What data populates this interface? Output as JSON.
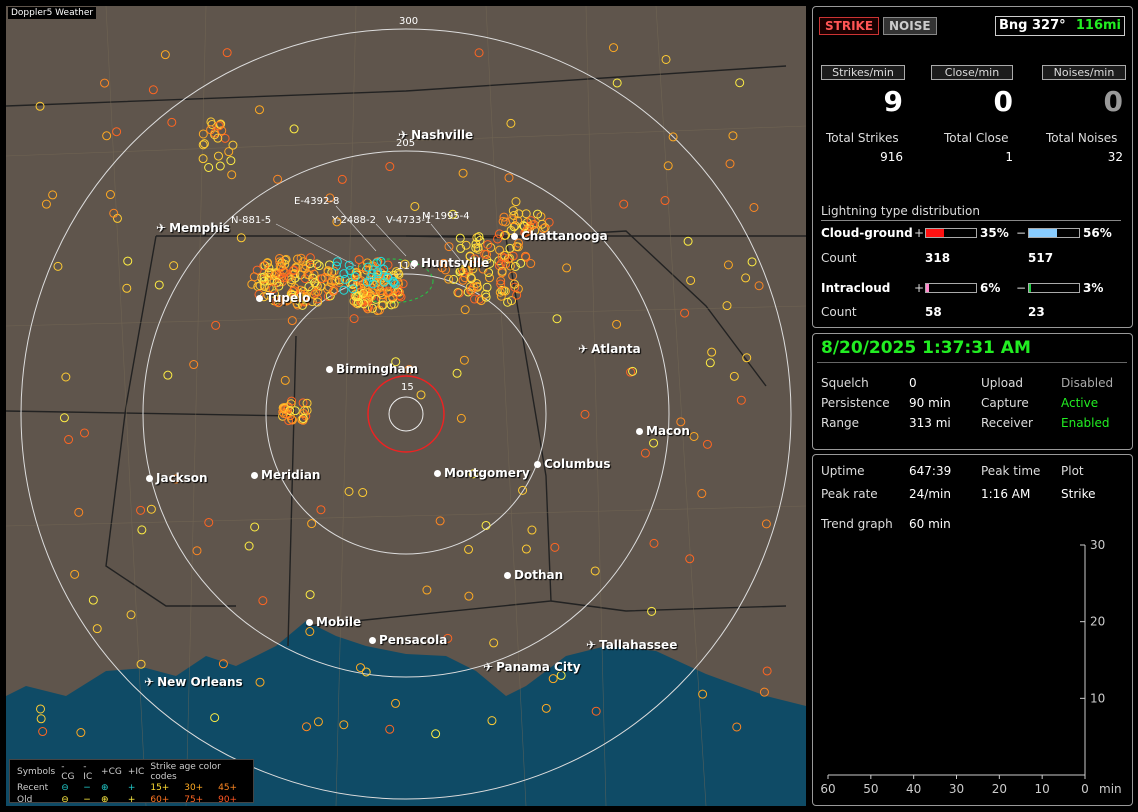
{
  "map": {
    "title": "Doppler5 Weather",
    "ring_labels": [
      "300",
      "205",
      "110",
      "15"
    ],
    "cities": [
      {
        "name": "Nashville",
        "type": "plane"
      },
      {
        "name": "Memphis",
        "type": "plane"
      },
      {
        "name": "Chattanooga",
        "type": "dot"
      },
      {
        "name": "Huntsville",
        "type": "dot"
      },
      {
        "name": "Tupelo",
        "type": "dot"
      },
      {
        "name": "Atlanta",
        "type": "plane"
      },
      {
        "name": "Birmingham",
        "type": "dot"
      },
      {
        "name": "Macon",
        "type": "dot"
      },
      {
        "name": "Jackson",
        "type": "dot"
      },
      {
        "name": "Meridian",
        "type": "dot"
      },
      {
        "name": "Montgomery",
        "type": "dot"
      },
      {
        "name": "Columbus",
        "type": "dot"
      },
      {
        "name": "Dothan",
        "type": "dot"
      },
      {
        "name": "Mobile",
        "type": "dot"
      },
      {
        "name": "Pensacola",
        "type": "dot"
      },
      {
        "name": "Tallahassee",
        "type": "plane"
      },
      {
        "name": "Panama City",
        "type": "plane"
      },
      {
        "name": "New Orleans",
        "type": "plane"
      }
    ],
    "sensor_labels": [
      "E-4392-8",
      "N-881-5",
      "Y-2488-2",
      "V-4733-1",
      "M-1995-4"
    ],
    "legend": {
      "header": [
        "Symbols",
        "-CG",
        "-IC",
        "+CG",
        "+IC",
        "Strike age color codes"
      ],
      "recent": {
        "label": "Recent",
        "ages": [
          "15+",
          "30+",
          "45+"
        ]
      },
      "old": {
        "label": "Old",
        "ages": [
          "60+",
          "75+",
          "90+"
        ]
      }
    }
  },
  "status": {
    "strike_btn": "STRIKE",
    "noise_btn": "NOISE",
    "bearing": "Bng 327°",
    "distance": "116mi",
    "headers": [
      "Strikes/min",
      "Close/min",
      "Noises/min"
    ],
    "rates": [
      "9",
      "0",
      "0"
    ],
    "totals_labels": [
      "Total Strikes",
      "Total Close",
      "Total Noises"
    ],
    "totals": [
      "916",
      "1",
      "32"
    ],
    "dist_title": "Lightning type distribution",
    "cloud_ground": {
      "label": "Cloud-ground",
      "pos_pct": "35%",
      "neg_pct": "56%",
      "pos_count": "318",
      "neg_count": "517",
      "pos_frac": 0.35,
      "neg_frac": 0.56
    },
    "intracloud": {
      "label": "Intracloud",
      "pos_pct": "6%",
      "neg_pct": "3%",
      "pos_count": "58",
      "neg_count": "23",
      "pos_frac": 0.06,
      "neg_frac": 0.03
    },
    "count_label": "Count",
    "plus": "+",
    "minus": "−"
  },
  "info": {
    "datetime": "8/20/2025 1:37:31 AM",
    "rows": [
      [
        "Squelch",
        "0",
        "Upload",
        "Disabled"
      ],
      [
        "Persistence",
        "90 min",
        "Capture",
        "Active"
      ],
      [
        "Range",
        "313 mi",
        "Receiver",
        "Enabled"
      ]
    ]
  },
  "stats": {
    "uptime_label": "Uptime",
    "uptime": "647:39",
    "peak_time_label": "Peak time",
    "peak_time": "1:16 AM",
    "plot_label": "Plot",
    "plot": "Strike",
    "peak_rate_label": "Peak rate",
    "peak_rate": "24/min",
    "trend_label": "Trend graph",
    "trend": "60 min"
  },
  "chart_data": {
    "type": "line",
    "x_ticks": [
      "60",
      "50",
      "40",
      "30",
      "20",
      "10",
      "0"
    ],
    "x_unit": "min",
    "y_ticks": [
      "30",
      "20",
      "10"
    ],
    "ylim": [
      0,
      30
    ],
    "xlim": [
      60,
      0
    ]
  },
  "colors": {
    "accent_green": "#22ee22",
    "strike_red": "#ff4444",
    "bar_red": "#ff1111",
    "bar_blue": "#88ccff",
    "bar_pink": "#ff88cc",
    "bar_green": "#22cc44"
  }
}
